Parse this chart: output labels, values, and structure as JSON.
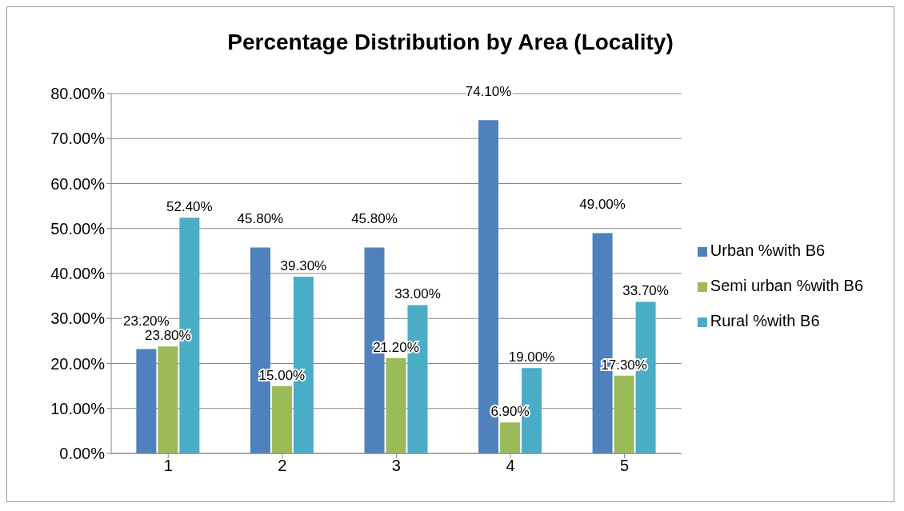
{
  "chart_data": {
    "type": "bar",
    "title": "Percentage Distribution by Area (Locality)",
    "categories": [
      "1",
      "2",
      "3",
      "4",
      "5"
    ],
    "series": [
      {
        "name": "Urban %with B6",
        "color": "#4f81bd",
        "values": [
          23.2,
          45.8,
          45.8,
          74.1,
          49.0
        ],
        "value_labels": [
          "23.20%",
          "45.80%",
          "45.80%",
          "74.10%",
          "49.00%"
        ]
      },
      {
        "name": "Semi urban %with B6",
        "color": "#9bbb59",
        "values": [
          23.8,
          15.0,
          21.2,
          6.9,
          17.3
        ],
        "value_labels": [
          "23.80%",
          "15.00%",
          "21.20%",
          "6.90%",
          "17.30%"
        ]
      },
      {
        "name": "Rural %with B6",
        "color": "#4bacc6",
        "values": [
          52.4,
          39.3,
          33.0,
          19.0,
          33.7
        ],
        "value_labels": [
          "52.40%",
          "39.30%",
          "33.00%",
          "19.00%",
          "33.70%"
        ]
      }
    ],
    "ylim": [
      0,
      80
    ],
    "yticks": [
      {
        "value": 0,
        "label": "0.00%"
      },
      {
        "value": 10,
        "label": "10.00%"
      },
      {
        "value": 20,
        "label": "20.00%"
      },
      {
        "value": 30,
        "label": "30.00%"
      },
      {
        "value": 40,
        "label": "40.00%"
      },
      {
        "value": 50,
        "label": "50.00%"
      },
      {
        "value": 60,
        "label": "60.00%"
      },
      {
        "value": 70,
        "label": "70.00%"
      },
      {
        "value": 80,
        "label": "80.00%"
      }
    ],
    "grid": "y",
    "legend": "right"
  }
}
